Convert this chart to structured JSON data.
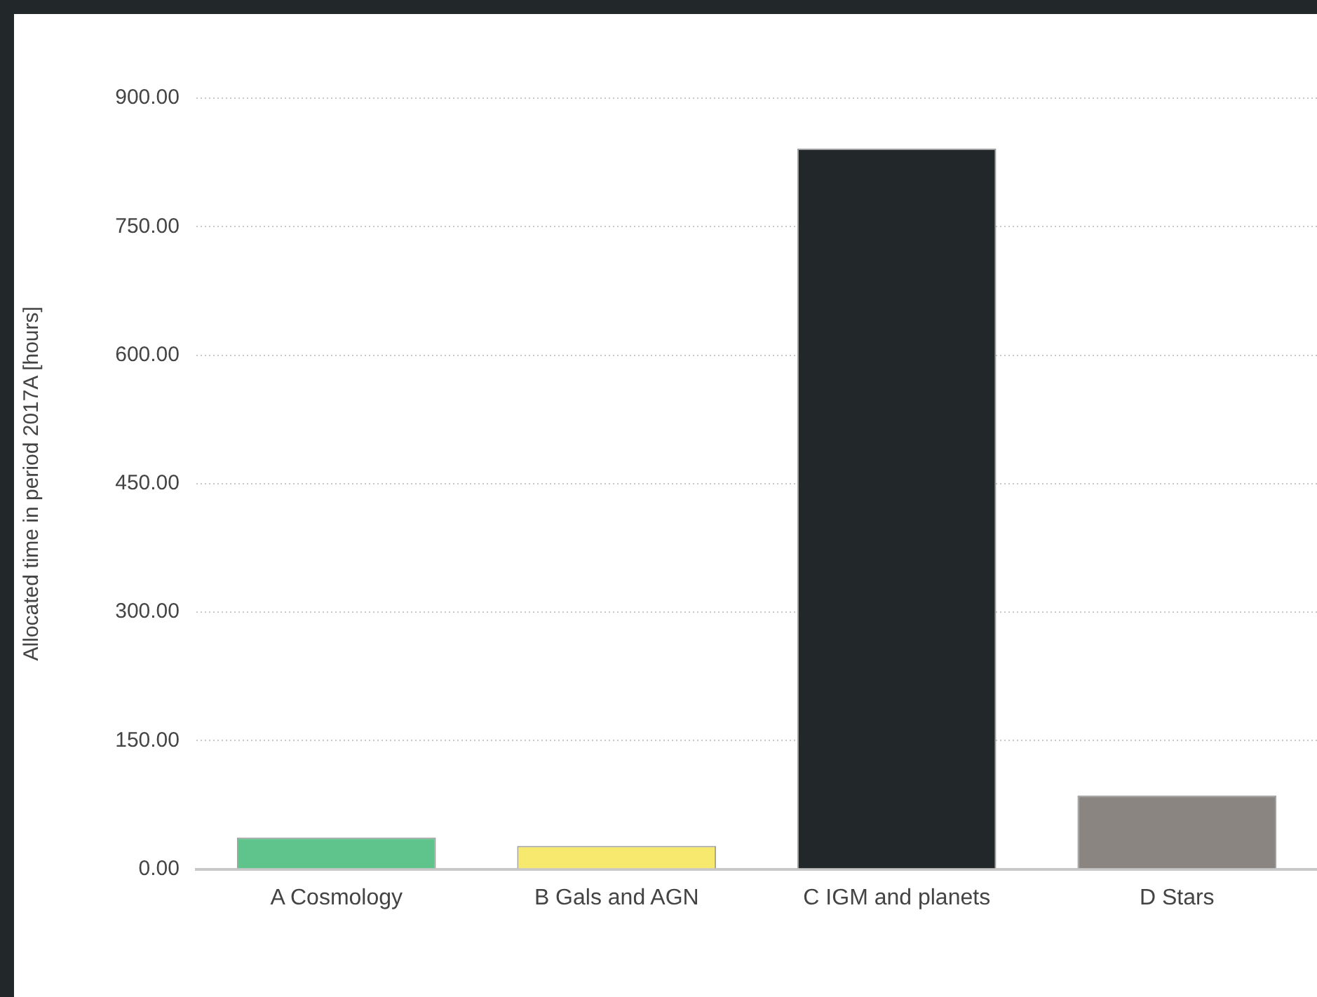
{
  "chart_data": {
    "type": "bar",
    "ylabel": "Allocated time in period 2017A [hours]",
    "categories": [
      "A Cosmology",
      "B Gals and AGN",
      "C IGM and planets",
      "D Stars"
    ],
    "values": [
      37,
      27,
      841,
      86
    ],
    "colors": [
      "#5ec48c",
      "#f7e86e",
      "#222829",
      "#8a8580"
    ],
    "ylim": [
      0,
      900
    ],
    "yticks": [
      {
        "value": 0,
        "label": "0.00"
      },
      {
        "value": 150,
        "label": "150.00"
      },
      {
        "value": 300,
        "label": "300.00"
      },
      {
        "value": 450,
        "label": "450.00"
      },
      {
        "value": 600,
        "label": "600.00"
      },
      {
        "value": 750,
        "label": "750.00"
      },
      {
        "value": 900,
        "label": "900.00"
      }
    ],
    "grid": "y",
    "legend": false
  }
}
